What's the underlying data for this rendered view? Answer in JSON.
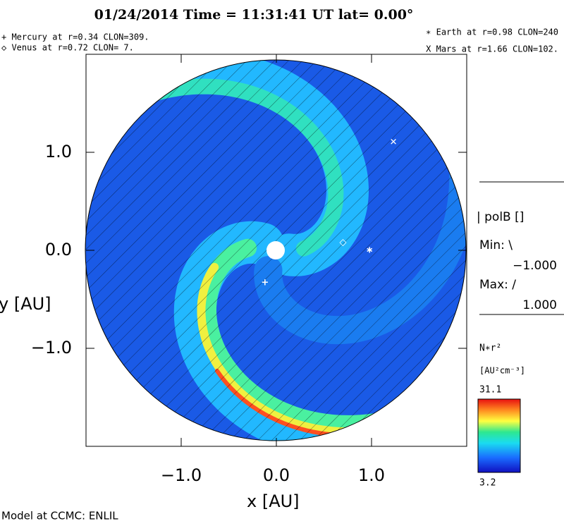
{
  "chart_data": {
    "type": "solar-wind-map",
    "title": "01/24/2014 Time = 11:31:41 UT lat= 0.00°",
    "legend_left": [
      "+ Mercury at r=0.34 CLON=309.",
      "◇ Venus at r=0.72 CLON=  7."
    ],
    "legend_right": [
      "∗ Earth at  r=0.98 CLON=240",
      "X Mars at r=1.66 CLON=102."
    ],
    "xlabel": "x [AU]",
    "ylabel": "y [AU]",
    "xlim": [
      -2,
      2
    ],
    "ylim": [
      -2,
      2
    ],
    "xticks": [
      {
        "value": -1,
        "label": "−1.0"
      },
      {
        "value": 0,
        "label": "0.0"
      },
      {
        "value": 1,
        "label": "1.0"
      }
    ],
    "yticks": [
      {
        "value": -1,
        "label": "−1.0"
      },
      {
        "value": 0,
        "label": "0.0"
      },
      {
        "value": 1,
        "label": "1.0"
      }
    ],
    "planets": [
      {
        "symbol": "+",
        "x": -0.12,
        "y": -0.33
      },
      {
        "symbol": "◇",
        "x": 0.7,
        "y": 0.08
      },
      {
        "symbol": "∗",
        "x": 0.98,
        "y": 0.0
      },
      {
        "symbol": "✕",
        "x": 1.23,
        "y": 1.1
      }
    ],
    "polarity_panel": {
      "label": "| polB []",
      "min_label": "Min: \\",
      "min": "−1.000",
      "max_label": "Max: /",
      "max": "1.000"
    },
    "colorbar": {
      "label": "N∗r²",
      "units": "[AU²cm⁻³]",
      "max": 31.1,
      "min": 3.2
    },
    "footer": "Model at CCMC: ENLIL"
  }
}
